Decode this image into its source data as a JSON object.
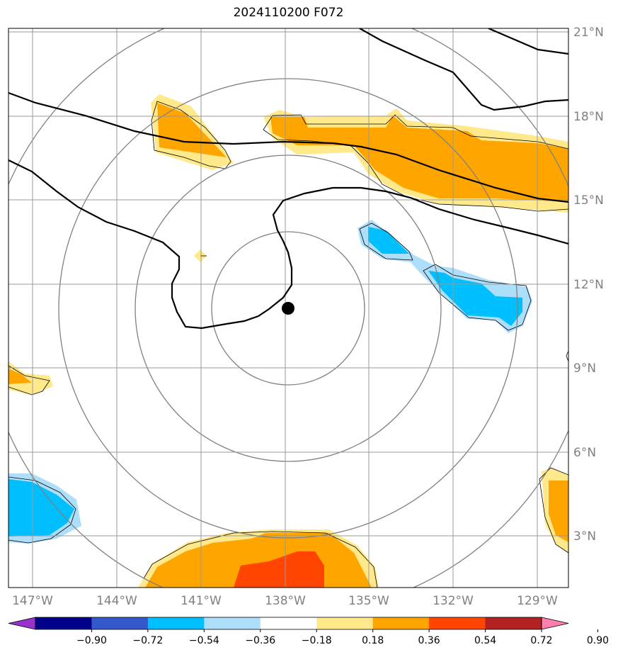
{
  "title": "2024110200 F072",
  "latitude_labels": [
    "21°N",
    "18°N",
    "15°N",
    "12°N",
    "9°N",
    "6°N",
    "3°N"
  ],
  "longitude_labels": [
    "147°W",
    "144°W",
    "141°W",
    "138°W",
    "135°W",
    "132°W",
    "129°W"
  ],
  "colorbar": {
    "colors": [
      "#9932CC",
      "#00008B",
      "#3358CC",
      "#00BFFF",
      "#ADDFFA",
      "#FFFFFF",
      "#FFE98B",
      "#FFA500",
      "#FF4500",
      "#B22222",
      "#FF80B0"
    ],
    "tick_labels": [
      "−0.90",
      "−0.72",
      "−0.54",
      "−0.36",
      "−0.18",
      "0.18",
      "0.36",
      "0.54",
      "0.72",
      "0.90"
    ]
  },
  "storm_center": {
    "lat": "11.2°N",
    "lon": "137.8°W"
  },
  "colors": {
    "grid": "#999999",
    "range_rings": "#808080",
    "contours": "#000000",
    "fill_weak_positive": "#FFE98B",
    "fill_positive": "#FFA500",
    "fill_strong_positive": "#FF4500",
    "fill_weak_negative": "#ADDFFA",
    "fill_negative": "#00BFFF"
  }
}
